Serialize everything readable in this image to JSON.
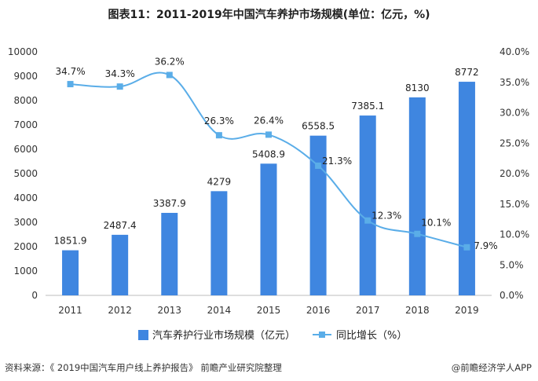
{
  "chart_data": {
    "type": "bar",
    "title": "图表11：2011-2019年中国汽车养护市场规模(单位：亿元，%)",
    "categories": [
      "2011",
      "2012",
      "2013",
      "2014",
      "2015",
      "2016",
      "2017",
      "2018",
      "2019"
    ],
    "series": [
      {
        "name": "汽车养护行业市场规模（亿元）",
        "type": "bar",
        "axis": "left",
        "values": [
          1851.9,
          2487.4,
          3387.9,
          4279,
          5408.9,
          6558.5,
          7385.1,
          8130,
          8772
        ],
        "labels": [
          "1851.9",
          "2487.4",
          "3387.9",
          "4279",
          "5408.9",
          "6558.5",
          "7385.1",
          "8130",
          "8772"
        ]
      },
      {
        "name": "同比增长（%）",
        "type": "line",
        "axis": "right",
        "values": [
          34.7,
          34.3,
          36.2,
          26.3,
          26.4,
          21.3,
          12.3,
          10.1,
          7.9
        ],
        "labels": [
          "34.7%",
          "34.3%",
          "36.2%",
          "26.3%",
          "26.4%",
          "21.3%",
          "12.3%",
          "10.1%",
          "7.9%"
        ]
      }
    ],
    "ylim": [
      0,
      10000
    ],
    "y_ticks": [
      "0",
      "1000",
      "2000",
      "3000",
      "4000",
      "5000",
      "6000",
      "7000",
      "8000",
      "9000",
      "10000"
    ],
    "y2lim": [
      0,
      40
    ],
    "y2_ticks": [
      "0.0%",
      "5.0%",
      "10.0%",
      "15.0%",
      "20.0%",
      "25.0%",
      "30.0%",
      "35.0%",
      "40.0%"
    ],
    "grid": false,
    "legend_position": "bottom",
    "colors": {
      "bar": "#3f86e0",
      "line": "#5aade8"
    }
  },
  "footer": {
    "source": "资料来源：《 2019中国汽车用户线上养护报告》   前瞻产业研究院整理",
    "brand": "@前瞻经济学人APP"
  }
}
